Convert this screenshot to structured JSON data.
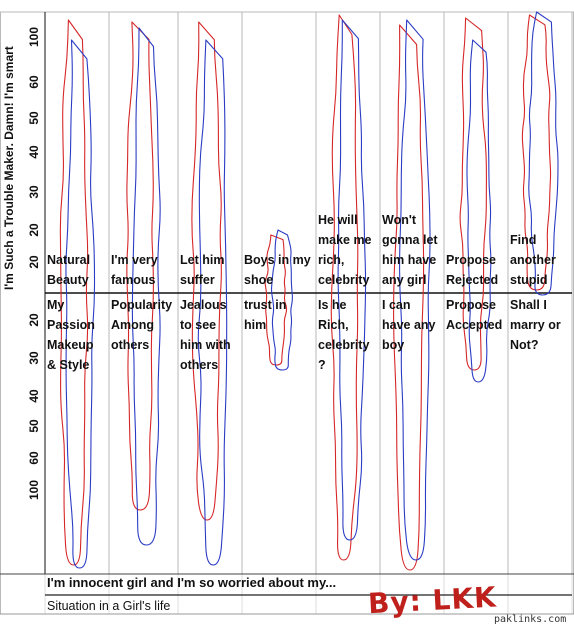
{
  "chart_data": {
    "type": "line",
    "ylabel": "I'm Such a Trouble Maker. Damn! I'm smart",
    "title": "I'm innocent girl and I'm so worried about my...",
    "subtitle": "Situation in a Girl's life",
    "upper_y_ticks": [
      "20",
      "20",
      "30",
      "40",
      "50",
      "60",
      "100"
    ],
    "lower_y_ticks": [
      "20",
      "30",
      "40",
      "50",
      "60",
      "100"
    ],
    "upper_labels": [
      [
        "Natural",
        "Beauty"
      ],
      [
        "I'm very",
        "famous"
      ],
      [
        "Let him",
        "suffer"
      ],
      [
        "Boys in my",
        "shoe"
      ],
      [
        "He will",
        "make me",
        "rich,",
        "celebrity"
      ],
      [
        "Won't",
        "gonna let",
        "him have",
        "any girl"
      ],
      [
        "Propose",
        "Rejected"
      ],
      [
        "Find",
        "another",
        "stupid"
      ]
    ],
    "lower_labels": [
      [
        "My",
        "Passion",
        "Makeup",
        "& Style"
      ],
      [
        "Popularity",
        "Among",
        "others"
      ],
      [
        "Jealous",
        "to see",
        "him with",
        "others"
      ],
      [
        "trust in",
        "him"
      ],
      [
        "Is he",
        "Rich,",
        "celebrity",
        "?"
      ],
      [
        "I can",
        "have any",
        "boy"
      ],
      [
        "Propose",
        "Accepted"
      ],
      [
        "Shall I",
        "marry or",
        "Not?"
      ]
    ],
    "series": [
      {
        "color": "#d62728",
        "values": [
          1,
          1,
          1,
          0,
          1,
          1,
          1,
          1
        ]
      },
      {
        "color": "#2b3cc4",
        "values": [
          1,
          1,
          1,
          0,
          1,
          1,
          1,
          1
        ]
      }
    ],
    "grid": true
  },
  "signature": "By: LKK",
  "watermark": "paklinks.com"
}
